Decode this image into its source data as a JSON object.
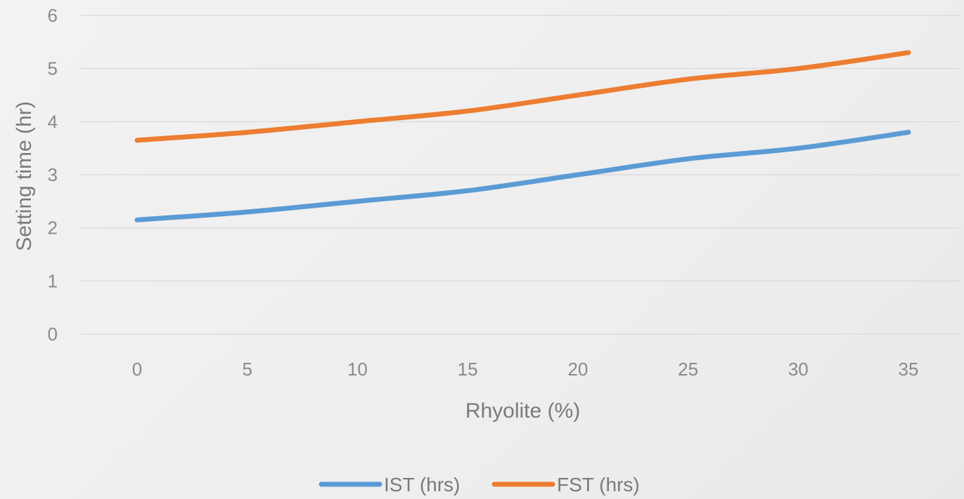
{
  "chart_data": {
    "type": "line",
    "title": "",
    "xlabel": "Rhyolite (%)",
    "ylabel": "Setting time (hr)",
    "x": [
      0,
      5,
      10,
      15,
      20,
      25,
      30,
      35
    ],
    "x_tick_labels": [
      "0",
      "5",
      "10",
      "15",
      "20",
      "25",
      "30",
      "35"
    ],
    "y_tick_labels": [
      "0",
      "1",
      "2",
      "3",
      "4",
      "5",
      "6"
    ],
    "ylim": [
      0,
      6
    ],
    "grid": true,
    "legend_position": "bottom-center",
    "series": [
      {
        "name": "IST (hrs)",
        "color": "#5b9bd5",
        "values": [
          2.15,
          2.3,
          2.5,
          2.7,
          3.0,
          3.3,
          3.5,
          3.8
        ]
      },
      {
        "name": "FST (hrs)",
        "color": "#ed7d31",
        "values": [
          3.65,
          3.8,
          4.0,
          4.2,
          4.5,
          4.8,
          5.0,
          5.3
        ]
      }
    ]
  }
}
